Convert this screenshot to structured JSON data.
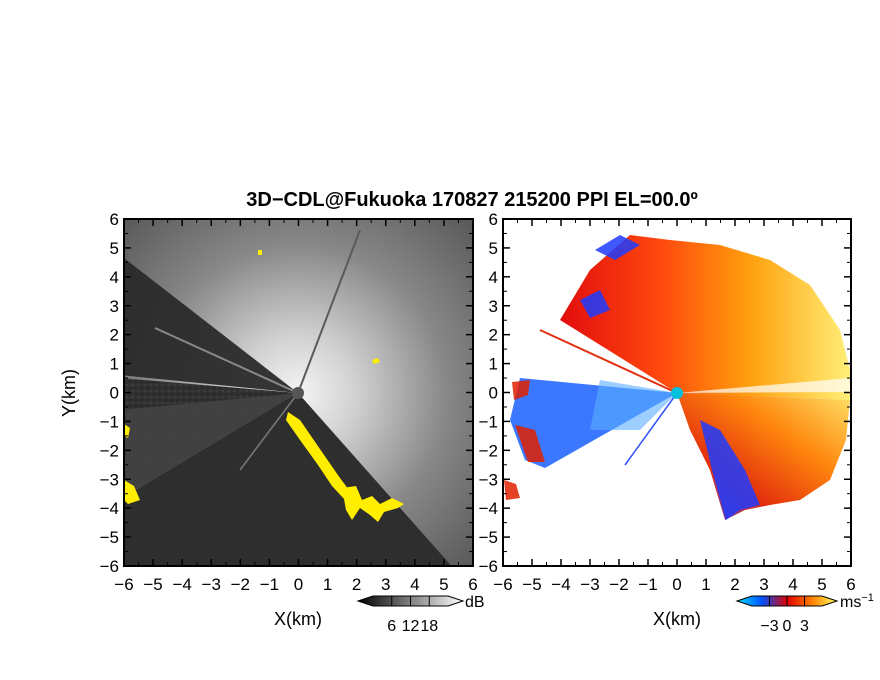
{
  "title": "3D−CDL@Fukuoka 170827 215200 PPI EL=00.0º",
  "colors": {
    "background_gray": "#2e2e2e",
    "echo_white": "#ffffff",
    "mask_yellow": "#ffee00",
    "radar_center": "#555555",
    "velocity_center": "#00c0e0"
  },
  "chart_data": [
    {
      "panel": "reflectivity",
      "type": "heatmap",
      "xlabel": "X(km)",
      "ylabel": "Y(km)",
      "xlim": [
        -6,
        6
      ],
      "ylim": [
        -6,
        6
      ],
      "xticks": [
        -6,
        -5,
        -4,
        -3,
        -2,
        -1,
        0,
        1,
        2,
        3,
        4,
        5,
        6
      ],
      "yticks": [
        -6,
        -5,
        -4,
        -3,
        -2,
        -1,
        0,
        1,
        2,
        3,
        4,
        5,
        6
      ],
      "colorbar": {
        "unit": "dB",
        "ticks": [
          6,
          12,
          18
        ],
        "range": [
          0,
          24
        ],
        "colors": [
          "#000000",
          "#ffffff"
        ]
      }
    },
    {
      "panel": "doppler_velocity",
      "type": "heatmap",
      "xlabel": "X(km)",
      "ylabel": "",
      "xlim": [
        -6,
        6
      ],
      "ylim": [
        -6,
        6
      ],
      "xticks": [
        -6,
        -5,
        -4,
        -3,
        -2,
        -1,
        0,
        1,
        2,
        3,
        4,
        5,
        6
      ],
      "yticks": [
        -6,
        -5,
        -4,
        -3,
        -2,
        -1,
        0,
        1,
        2,
        3,
        4,
        5,
        6
      ],
      "colorbar": {
        "unit": "ms−1",
        "ticks": [
          -3,
          0,
          3
        ],
        "range": [
          -6,
          6
        ],
        "colors": [
          "#00e0ff",
          "#0050ff",
          "#e00000",
          "#ff8000",
          "#ffff60"
        ]
      }
    }
  ]
}
